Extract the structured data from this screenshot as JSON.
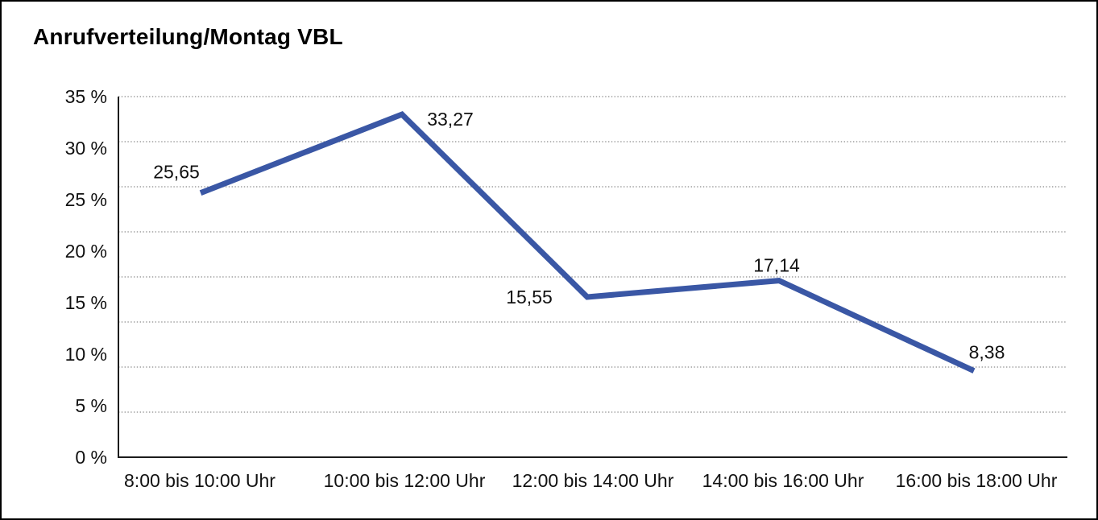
{
  "title": "Anrufverteilung/Montag VBL",
  "chart_data": {
    "type": "line",
    "title": "Anrufverteilung/Montag VBL",
    "categories": [
      "8:00 bis 10:00 Uhr",
      "10:00 bis 12:00 Uhr",
      "12:00 bis 14:00 Uhr",
      "14:00 bis 16:00 Uhr",
      "16:00 bis 18:00 Uhr"
    ],
    "values": [
      25.65,
      33.27,
      15.55,
      17.14,
      8.38
    ],
    "value_labels": [
      "25,65",
      "33,27",
      "15,55",
      "17,14",
      "8,38"
    ],
    "y_tick_labels": [
      "35 %",
      "30 %",
      "25 %",
      "20 %",
      "15 %",
      "10 %",
      "5 %",
      "0 %"
    ],
    "ylim": [
      0,
      35
    ],
    "y_tick_step": 5,
    "xlabel": "",
    "ylabel": "",
    "legend": "none",
    "grid": "horizontal-dotted",
    "line_color": "#3A57A5",
    "axis_color": "#1c1c1c",
    "grid_color": "#8a8a8a",
    "text_color": "#111111"
  }
}
